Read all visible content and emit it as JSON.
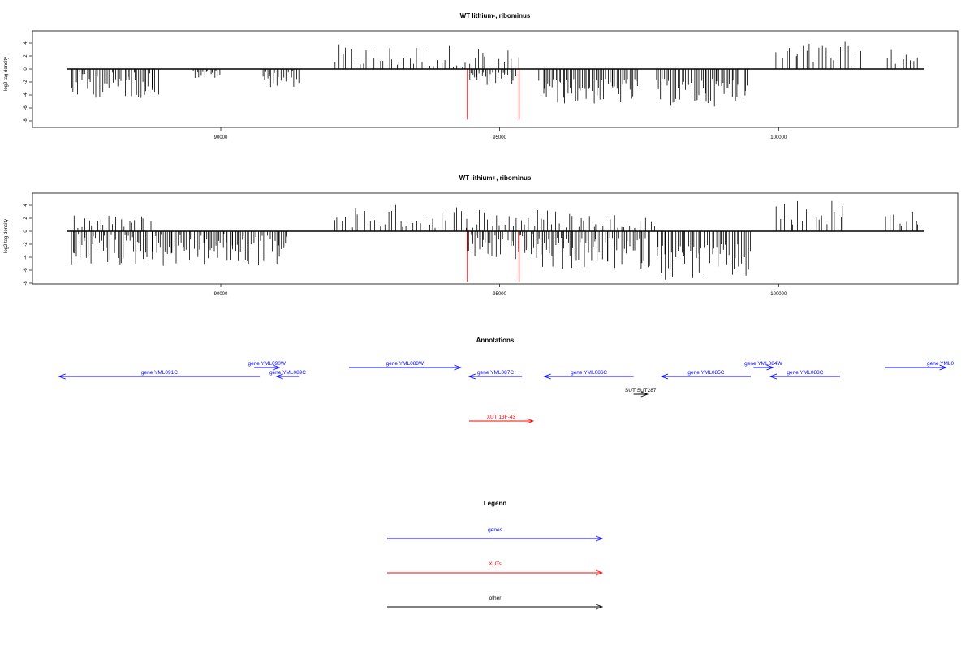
{
  "chart_data": [
    {
      "type": "bar",
      "title": "WT lithium-, ribominus",
      "ylabel": "log2 tag density",
      "xlim": [
        87250,
        102600
      ],
      "ylim": [
        -8,
        5.5
      ],
      "xticks": [
        "90000",
        "95000",
        "100000"
      ],
      "yticks": [
        "4",
        "2",
        "0",
        "-2",
        "-4",
        "-6",
        "-8"
      ],
      "baseline": 0,
      "positive_ranges": [
        [
          92000,
          94800,
          0.3,
          3.8
        ],
        [
          94950,
          95350,
          0.5,
          3.0
        ],
        [
          99950,
          101500,
          0.5,
          4.2
        ],
        [
          101900,
          102550,
          0.6,
          3.2
        ]
      ],
      "negative_ranges": [
        [
          87300,
          88900,
          -0.5,
          -4.5
        ],
        [
          89500,
          90000,
          -0.3,
          -1.5
        ],
        [
          90700,
          91400,
          -0.3,
          -2.8
        ],
        [
          94400,
          95300,
          -0.5,
          -2.5
        ],
        [
          95700,
          97500,
          -1.5,
          -5.5
        ],
        [
          97800,
          99300,
          -1.5,
          -5.8
        ],
        [
          99350,
          99450,
          -1.0,
          -5.0
        ]
      ],
      "highlight_bars": [
        {
          "x": 94420,
          "y": -7.8,
          "color": "#ff0000"
        },
        {
          "x": 95350,
          "y": -7.8,
          "color": "#ff0000"
        }
      ]
    },
    {
      "type": "bar",
      "title": "WT lithium+, ribominus",
      "ylabel": "log2 tag density",
      "xlim": [
        87250,
        102600
      ],
      "ylim": [
        -8,
        5.5
      ],
      "xticks": [
        "90000",
        "95000",
        "100000"
      ],
      "yticks": [
        "4",
        "2",
        "0",
        "-2",
        "-4",
        "-6",
        "-8"
      ],
      "baseline": 0,
      "positive_ranges": [
        [
          87300,
          88800,
          0.5,
          2.5
        ],
        [
          92000,
          94700,
          0.5,
          4.2
        ],
        [
          94700,
          96500,
          0.5,
          3.5
        ],
        [
          96500,
          97800,
          0.5,
          2.8
        ],
        [
          99950,
          101200,
          1.0,
          5.2
        ],
        [
          101900,
          102550,
          0.8,
          3.8
        ]
      ],
      "negative_ranges": [
        [
          87300,
          91200,
          -0.5,
          -5.5
        ],
        [
          94400,
          95600,
          -0.5,
          -4.5
        ],
        [
          95600,
          97700,
          -1.0,
          -6.0
        ],
        [
          97800,
          99500,
          -2.0,
          -7.5
        ]
      ],
      "highlight_bars": [
        {
          "x": 94420,
          "y": -7.8,
          "color": "#ff0000"
        },
        {
          "x": 95350,
          "y": -7.8,
          "color": "#ff0000"
        }
      ]
    }
  ],
  "annotations": {
    "title": "Annotations",
    "features": [
      {
        "label": "gene YML091C",
        "start": 90700,
        "end": 87100,
        "row": 1,
        "color": "#0000ff"
      },
      {
        "label": "gene YML090W",
        "start": 90600,
        "end": 91050,
        "row": 0,
        "color": "#0000ff"
      },
      {
        "label": "gene YML089C",
        "start": 91400,
        "end": 91000,
        "row": 1,
        "color": "#0000ff"
      },
      {
        "label": "gene YML088W",
        "start": 92300,
        "end": 94300,
        "row": 0,
        "color": "#0000ff"
      },
      {
        "label": "gene YML087C",
        "start": 95400,
        "end": 94450,
        "row": 1,
        "color": "#0000ff"
      },
      {
        "label": "gene YML086C",
        "start": 97400,
        "end": 95800,
        "row": 1,
        "color": "#0000ff"
      },
      {
        "label": "gene YML085C",
        "start": 99500,
        "end": 97900,
        "row": 1,
        "color": "#0000ff"
      },
      {
        "label": "gene YML084W",
        "start": 99550,
        "end": 99900,
        "row": 0,
        "color": "#0000ff"
      },
      {
        "label": "gene YML083C",
        "start": 101100,
        "end": 99850,
        "row": 1,
        "color": "#0000ff"
      },
      {
        "label": "gene YML0",
        "start": 101900,
        "end": 103000,
        "row": 0,
        "color": "#0000ff"
      },
      {
        "label": "SUT SUT287",
        "start": 97400,
        "end": 97650,
        "row": 3,
        "color": "#000000"
      },
      {
        "label": "XUT 13F-43",
        "start": 94450,
        "end": 95600,
        "row": 6,
        "color": "#ff0000"
      }
    ]
  },
  "legend": {
    "title": "Legend",
    "items": [
      {
        "label": "genes",
        "color": "#0000ff"
      },
      {
        "label": "XUTs",
        "color": "#ff0000"
      },
      {
        "label": "other",
        "color": "#000000"
      }
    ]
  }
}
